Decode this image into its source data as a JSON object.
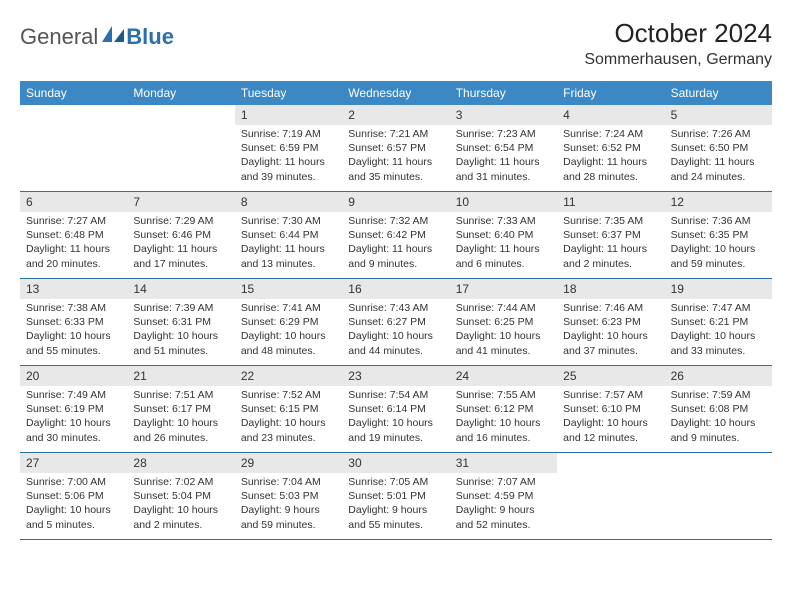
{
  "logo": {
    "part1": "General",
    "part2": "Blue"
  },
  "title": "October 2024",
  "location": "Sommerhausen, Germany",
  "colors": {
    "header_bg": "#3b88c4",
    "header_text": "#ffffff",
    "daynum_bg": "#e8e8e8",
    "row_border": "#2e6ea3",
    "logo_blue": "#2b6fb0",
    "logo_gray": "#555555"
  },
  "typography": {
    "title_fontsize": 26,
    "location_fontsize": 16,
    "dow_fontsize": 12,
    "daynum_fontsize": 12,
    "detail_fontsize": 10.5
  },
  "days_of_week": [
    "Sunday",
    "Monday",
    "Tuesday",
    "Wednesday",
    "Thursday",
    "Friday",
    "Saturday"
  ],
  "weeks": [
    [
      null,
      null,
      {
        "n": "1",
        "sr": "7:19 AM",
        "ss": "6:59 PM",
        "dl": "11 hours and 39 minutes."
      },
      {
        "n": "2",
        "sr": "7:21 AM",
        "ss": "6:57 PM",
        "dl": "11 hours and 35 minutes."
      },
      {
        "n": "3",
        "sr": "7:23 AM",
        "ss": "6:54 PM",
        "dl": "11 hours and 31 minutes."
      },
      {
        "n": "4",
        "sr": "7:24 AM",
        "ss": "6:52 PM",
        "dl": "11 hours and 28 minutes."
      },
      {
        "n": "5",
        "sr": "7:26 AM",
        "ss": "6:50 PM",
        "dl": "11 hours and 24 minutes."
      }
    ],
    [
      {
        "n": "6",
        "sr": "7:27 AM",
        "ss": "6:48 PM",
        "dl": "11 hours and 20 minutes."
      },
      {
        "n": "7",
        "sr": "7:29 AM",
        "ss": "6:46 PM",
        "dl": "11 hours and 17 minutes."
      },
      {
        "n": "8",
        "sr": "7:30 AM",
        "ss": "6:44 PM",
        "dl": "11 hours and 13 minutes."
      },
      {
        "n": "9",
        "sr": "7:32 AM",
        "ss": "6:42 PM",
        "dl": "11 hours and 9 minutes."
      },
      {
        "n": "10",
        "sr": "7:33 AM",
        "ss": "6:40 PM",
        "dl": "11 hours and 6 minutes."
      },
      {
        "n": "11",
        "sr": "7:35 AM",
        "ss": "6:37 PM",
        "dl": "11 hours and 2 minutes."
      },
      {
        "n": "12",
        "sr": "7:36 AM",
        "ss": "6:35 PM",
        "dl": "10 hours and 59 minutes."
      }
    ],
    [
      {
        "n": "13",
        "sr": "7:38 AM",
        "ss": "6:33 PM",
        "dl": "10 hours and 55 minutes."
      },
      {
        "n": "14",
        "sr": "7:39 AM",
        "ss": "6:31 PM",
        "dl": "10 hours and 51 minutes."
      },
      {
        "n": "15",
        "sr": "7:41 AM",
        "ss": "6:29 PM",
        "dl": "10 hours and 48 minutes."
      },
      {
        "n": "16",
        "sr": "7:43 AM",
        "ss": "6:27 PM",
        "dl": "10 hours and 44 minutes."
      },
      {
        "n": "17",
        "sr": "7:44 AM",
        "ss": "6:25 PM",
        "dl": "10 hours and 41 minutes."
      },
      {
        "n": "18",
        "sr": "7:46 AM",
        "ss": "6:23 PM",
        "dl": "10 hours and 37 minutes."
      },
      {
        "n": "19",
        "sr": "7:47 AM",
        "ss": "6:21 PM",
        "dl": "10 hours and 33 minutes."
      }
    ],
    [
      {
        "n": "20",
        "sr": "7:49 AM",
        "ss": "6:19 PM",
        "dl": "10 hours and 30 minutes."
      },
      {
        "n": "21",
        "sr": "7:51 AM",
        "ss": "6:17 PM",
        "dl": "10 hours and 26 minutes."
      },
      {
        "n": "22",
        "sr": "7:52 AM",
        "ss": "6:15 PM",
        "dl": "10 hours and 23 minutes."
      },
      {
        "n": "23",
        "sr": "7:54 AM",
        "ss": "6:14 PM",
        "dl": "10 hours and 19 minutes."
      },
      {
        "n": "24",
        "sr": "7:55 AM",
        "ss": "6:12 PM",
        "dl": "10 hours and 16 minutes."
      },
      {
        "n": "25",
        "sr": "7:57 AM",
        "ss": "6:10 PM",
        "dl": "10 hours and 12 minutes."
      },
      {
        "n": "26",
        "sr": "7:59 AM",
        "ss": "6:08 PM",
        "dl": "10 hours and 9 minutes."
      }
    ],
    [
      {
        "n": "27",
        "sr": "7:00 AM",
        "ss": "5:06 PM",
        "dl": "10 hours and 5 minutes."
      },
      {
        "n": "28",
        "sr": "7:02 AM",
        "ss": "5:04 PM",
        "dl": "10 hours and 2 minutes."
      },
      {
        "n": "29",
        "sr": "7:04 AM",
        "ss": "5:03 PM",
        "dl": "9 hours and 59 minutes."
      },
      {
        "n": "30",
        "sr": "7:05 AM",
        "ss": "5:01 PM",
        "dl": "9 hours and 55 minutes."
      },
      {
        "n": "31",
        "sr": "7:07 AM",
        "ss": "4:59 PM",
        "dl": "9 hours and 52 minutes."
      },
      null,
      null
    ]
  ],
  "labels": {
    "sunrise": "Sunrise:",
    "sunset": "Sunset:",
    "daylight": "Daylight:"
  }
}
